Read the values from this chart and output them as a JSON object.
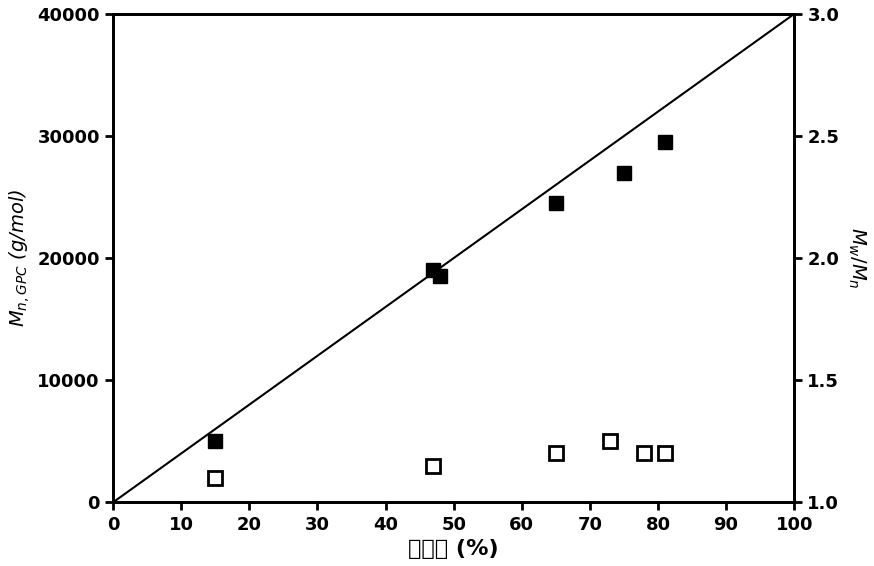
{
  "filled_x": [
    15,
    47,
    48,
    65,
    75,
    81
  ],
  "filled_y": [
    5000,
    19000,
    18500,
    24500,
    27000,
    29500
  ],
  "open_x": [
    15,
    47,
    65,
    73,
    78,
    81
  ],
  "open_y_right": [
    1.1,
    1.15,
    1.2,
    1.25,
    1.2,
    1.2
  ],
  "line_x": [
    0,
    100
  ],
  "line_y": [
    0,
    40000
  ],
  "xlim": [
    0,
    100
  ],
  "ylim_left": [
    0,
    40000
  ],
  "ylim_right": [
    1.0,
    3.0
  ],
  "xlabel": "转化率 (%)",
  "ylabel_left": "$M_{n,GPC}$ (g/mol)",
  "ylabel_right": "$M_w/M_n$",
  "xticks": [
    0,
    10,
    20,
    30,
    40,
    50,
    60,
    70,
    80,
    90,
    100
  ],
  "yticks_left": [
    0,
    10000,
    20000,
    30000,
    40000
  ],
  "yticks_right": [
    1.0,
    1.5,
    2.0,
    2.5,
    3.0
  ],
  "background_color": "#ffffff",
  "marker_size": 10,
  "line_color": "#000000",
  "filled_color": "#000000",
  "open_color": "#000000"
}
